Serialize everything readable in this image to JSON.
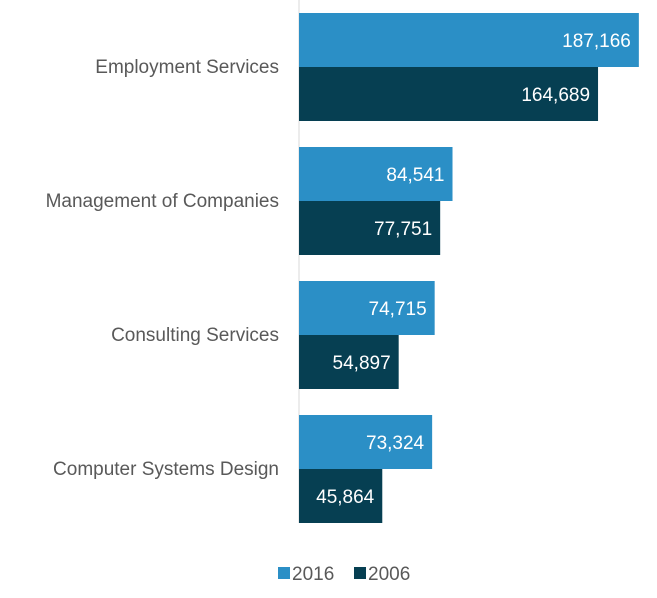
{
  "chart_data": {
    "type": "bar",
    "orientation": "horizontal",
    "categories": [
      "Employment Services",
      "Management of Companies",
      "Consulting Services",
      "Computer Systems Design"
    ],
    "series": [
      {
        "name": "2016",
        "color": "#2b8fc6",
        "values": [
          187166,
          84541,
          74715,
          73324
        ]
      },
      {
        "name": "2006",
        "color": "#063f52",
        "values": [
          164689,
          77751,
          54897,
          45864
        ]
      }
    ],
    "data_labels": [
      [
        "187,166",
        "84,541",
        "74,715",
        "73,324"
      ],
      [
        "164,689",
        "77,751",
        "54,897",
        "45,864"
      ]
    ],
    "xlim": [
      0,
      190000
    ],
    "axis_color": "#d9d9d9",
    "legend_position": "bottom",
    "grid": false
  }
}
